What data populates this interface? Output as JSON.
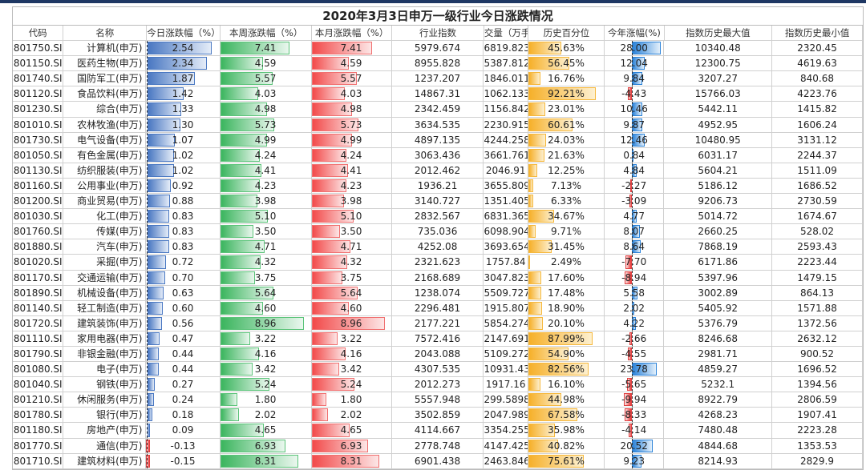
{
  "title": "2020年3月3日申万一级行业今日涨跌情况",
  "headers": [
    "代码",
    "名称",
    "今日涨跌幅（%）",
    "本周涨跌幅（%）",
    "本月涨跌幅（%）",
    "行业指数",
    "交量（万手",
    "历史百分位",
    "今年涨幅(%)",
    "指数历史最大值",
    "指数历史最小值"
  ],
  "colors": {
    "today": "#4a78c2",
    "week": "#3bb55e",
    "month": "#f24a4a",
    "percentile": "#f6b02a",
    "ytd": "#2a82d8",
    "negative": "#e83838"
  },
  "rows": [
    [
      "801750.SI",
      "计算机(申万)",
      "2.54",
      "7.41",
      "7.41",
      "5979.674",
      "6819.823",
      "45.63%",
      "28.00",
      "10340.48",
      "2320.45"
    ],
    [
      "801150.SI",
      "医药生物(申万)",
      "2.34",
      "4.59",
      "4.59",
      "8955.828",
      "5387.812",
      "56.45%",
      "12.04",
      "12300.75",
      "4619.63"
    ],
    [
      "801740.SI",
      "国防军工(申万)",
      "1.87",
      "5.57",
      "5.57",
      "1237.207",
      "1846.011",
      "16.76%",
      "9.84",
      "3207.27",
      "840.68"
    ],
    [
      "801120.SI",
      "食品饮料(申万)",
      "1.42",
      "4.03",
      "4.03",
      "14867.31",
      "1062.133",
      "92.21%",
      "-4.43",
      "15766.03",
      "4223.76"
    ],
    [
      "801230.SI",
      "综合(申万)",
      "1.33",
      "4.98",
      "4.98",
      "2342.459",
      "1156.842",
      "23.01%",
      "10.46",
      "5442.11",
      "1415.82"
    ],
    [
      "801010.SI",
      "农林牧渔(申万)",
      "1.30",
      "5.73",
      "5.73",
      "3634.535",
      "2230.915",
      "60.61%",
      "9.87",
      "4952.95",
      "1606.24"
    ],
    [
      "801730.SI",
      "电气设备(申万)",
      "1.07",
      "4.99",
      "4.99",
      "4897.135",
      "4244.258",
      "24.03%",
      "12.46",
      "10480.95",
      "3131.12"
    ],
    [
      "801050.SI",
      "有色金属(申万)",
      "1.02",
      "4.24",
      "4.24",
      "3063.436",
      "3661.761",
      "21.63%",
      "0.84",
      "6031.17",
      "2244.37"
    ],
    [
      "801130.SI",
      "纺织服装(申万)",
      "1.02",
      "4.41",
      "4.41",
      "2012.462",
      "2046.91",
      "12.25%",
      "4.84",
      "5604.21",
      "1511.09"
    ],
    [
      "801160.SI",
      "公用事业(申万)",
      "0.92",
      "4.23",
      "4.23",
      "1936.21",
      "3655.809",
      "7.13%",
      "-2.27",
      "5186.12",
      "1686.52"
    ],
    [
      "801200.SI",
      "商业贸易(申万)",
      "0.88",
      "3.98",
      "3.98",
      "3140.727",
      "1351.405",
      "6.33%",
      "-3.09",
      "9206.73",
      "2730.59"
    ],
    [
      "801030.SI",
      "化工(申万)",
      "0.83",
      "5.10",
      "5.10",
      "2832.567",
      "6831.365",
      "34.67%",
      "4.77",
      "5014.72",
      "1674.67"
    ],
    [
      "801760.SI",
      "传媒(申万)",
      "0.83",
      "3.50",
      "3.50",
      "735.036",
      "6098.904",
      "9.71%",
      "8.07",
      "2660.25",
      "528.02"
    ],
    [
      "801880.SI",
      "汽车(申万)",
      "0.83",
      "4.71",
      "4.71",
      "4252.08",
      "3693.654",
      "31.45%",
      "8.64",
      "7868.19",
      "2593.43"
    ],
    [
      "801020.SI",
      "采掘(申万)",
      "0.72",
      "4.32",
      "4.32",
      "2321.623",
      "1757.84",
      "2.49%",
      "-7.70",
      "6171.86",
      "2223.44"
    ],
    [
      "801170.SI",
      "交通运输(申万)",
      "0.70",
      "3.75",
      "3.75",
      "2168.689",
      "3047.823",
      "17.60%",
      "-8.94",
      "5397.96",
      "1479.15"
    ],
    [
      "801890.SI",
      "机械设备(申万)",
      "0.63",
      "5.64",
      "5.64",
      "1238.074",
      "5509.727",
      "17.48%",
      "5.58",
      "3002.89",
      "864.13"
    ],
    [
      "801140.SI",
      "轻工制造(申万)",
      "0.60",
      "4.60",
      "4.60",
      "2296.481",
      "1915.807",
      "18.90%",
      "2.02",
      "5405.92",
      "1571.88"
    ],
    [
      "801720.SI",
      "建筑装饰(申万)",
      "0.56",
      "8.96",
      "8.96",
      "2177.221",
      "5854.274",
      "20.10%",
      "4.22",
      "5376.79",
      "1372.56"
    ],
    [
      "801110.SI",
      "家用电器(申万)",
      "0.47",
      "3.22",
      "3.22",
      "7572.416",
      "2147.691",
      "87.99%",
      "-2.66",
      "8246.68",
      "2632.12"
    ],
    [
      "801790.SI",
      "非银金融(申万)",
      "0.44",
      "4.16",
      "4.16",
      "2043.088",
      "5109.272",
      "54.90%",
      "-4.55",
      "2981.71",
      "900.52"
    ],
    [
      "801080.SI",
      "电子(申万)",
      "0.44",
      "3.42",
      "3.42",
      "4307.535",
      "10931.43",
      "82.56%",
      "23.78",
      "4859.27",
      "1696.52"
    ],
    [
      "801040.SI",
      "钢铁(申万)",
      "0.27",
      "5.24",
      "5.24",
      "2012.273",
      "1917.16",
      "16.10%",
      "-5.65",
      "5232.1",
      "1394.56"
    ],
    [
      "801210.SI",
      "休闲服务(申万)",
      "0.24",
      "1.80",
      "1.80",
      "5557.948",
      "299.5898",
      "44.98%",
      "-9.94",
      "8922.79",
      "2806.59"
    ],
    [
      "801780.SI",
      "银行(申万)",
      "0.18",
      "2.02",
      "2.02",
      "3502.859",
      "2047.989",
      "67.58%",
      "-8.33",
      "4268.23",
      "1907.41"
    ],
    [
      "801180.SI",
      "房地产(申万)",
      "0.09",
      "4.65",
      "4.65",
      "4114.667",
      "3354.255",
      "35.98%",
      "-4.14",
      "7480.48",
      "2223.28"
    ],
    [
      "801770.SI",
      "通信(申万)",
      "-0.13",
      "6.93",
      "6.93",
      "2778.748",
      "4147.425",
      "40.82%",
      "20.52",
      "4844.68",
      "1353.53"
    ],
    [
      "801710.SI",
      "建筑材料(申万)",
      "-0.15",
      "8.31",
      "8.31",
      "6901.438",
      "2463.846",
      "75.61%",
      "9.23",
      "8214.93",
      "2829.9"
    ]
  ]
}
